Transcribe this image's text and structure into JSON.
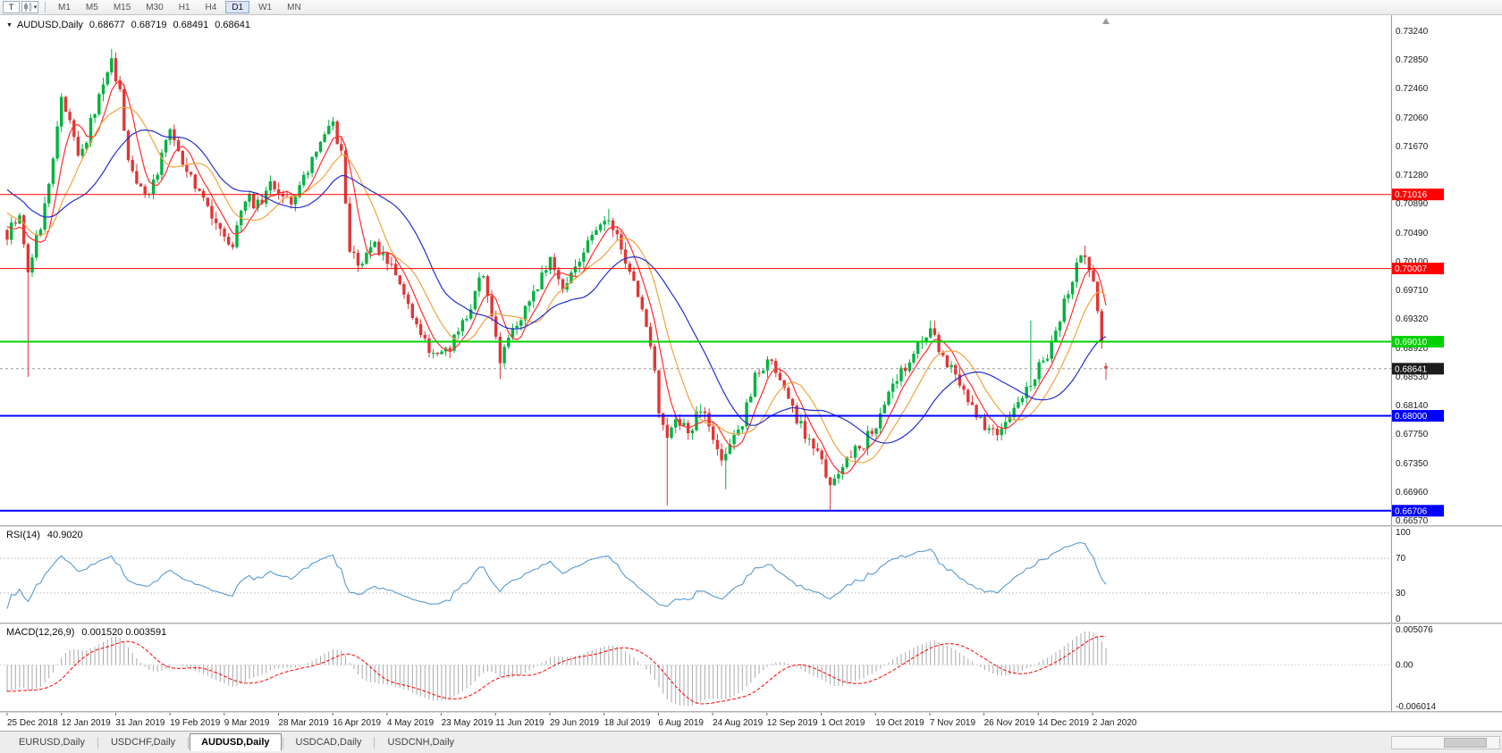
{
  "toolbar": {
    "chart_icon_label": "T",
    "timeframes": [
      {
        "label": "M1",
        "active": false
      },
      {
        "label": "M5",
        "active": false
      },
      {
        "label": "M15",
        "active": false
      },
      {
        "label": "M30",
        "active": false
      },
      {
        "label": "H1",
        "active": false
      },
      {
        "label": "H4",
        "active": false
      },
      {
        "label": "D1",
        "active": true
      },
      {
        "label": "W1",
        "active": false
      },
      {
        "label": "MN",
        "active": false
      }
    ]
  },
  "icons": {
    "collapse": "▼",
    "dropdown": "▾"
  },
  "chart_header": {
    "symbol_label": "AUDUSD,Daily",
    "open": "0.68677",
    "high": "0.68719",
    "low": "0.68491",
    "close": "0.68641"
  },
  "colors": {
    "candle_up": "#00b140",
    "candle_down": "#e03636",
    "ma_fast": "#ff2e2e",
    "ma_mid": "#f2a33c",
    "ma_slow": "#2330cc",
    "rsi": "#569bd2",
    "macd_hist": "#a9a9a9",
    "macd_signal": "#ff0000",
    "line_red": "#ff0000",
    "line_green": "#00d200",
    "line_blue": "#0000ff",
    "current_tag": "#1c1c1c"
  },
  "chart_data": {
    "type": "candlestick",
    "symbol": "AUDUSD",
    "timeframe": "Daily",
    "bars": 264,
    "y_axis": {
      "top_price": 0.7324,
      "bottom_price": 0.6657
    },
    "y_ticks": [
      "0.73240",
      "0.72850",
      "0.72460",
      "0.72060",
      "0.71670",
      "0.71280",
      "0.70890",
      "0.70490",
      "0.70100",
      "0.69710",
      "0.69320",
      "0.68920",
      "0.68530",
      "0.68140",
      "0.67750",
      "0.67350",
      "0.66960",
      "0.66570"
    ],
    "x_labels": [
      "25 Dec 2018",
      "12 Jan 2019",
      "31 Jan 2019",
      "19 Feb 2019",
      "9 Mar 2019",
      "28 Mar 2019",
      "16 Apr 2019",
      "4 May 2019",
      "23 May 2019",
      "11 Jun 2019",
      "29 Jun 2019",
      "18 Jul 2019",
      "6 Aug 2019",
      "24 Aug 2019",
      "12 Sep 2019",
      "1 Oct 2019",
      "19 Oct 2019",
      "7 Nov 2019",
      "26 Nov 2019",
      "14 Dec 2019",
      "2 Jan 2020"
    ],
    "price_anchors": [
      [
        0,
        0.7048
      ],
      [
        3,
        0.7065
      ],
      [
        5,
        0.6995
      ],
      [
        8,
        0.706
      ],
      [
        11,
        0.715
      ],
      [
        13,
        0.723
      ],
      [
        15,
        0.7205
      ],
      [
        17,
        0.715
      ],
      [
        19,
        0.718
      ],
      [
        22,
        0.724
      ],
      [
        25,
        0.7285
      ],
      [
        27,
        0.724
      ],
      [
        29,
        0.715
      ],
      [
        31,
        0.711
      ],
      [
        34,
        0.7095
      ],
      [
        37,
        0.716
      ],
      [
        39,
        0.7195
      ],
      [
        42,
        0.714
      ],
      [
        45,
        0.7115
      ],
      [
        48,
        0.7085
      ],
      [
        50,
        0.706
      ],
      [
        52,
        0.704
      ],
      [
        54,
        0.703
      ],
      [
        56,
        0.7075
      ],
      [
        58,
        0.71
      ],
      [
        60,
        0.7085
      ],
      [
        63,
        0.712
      ],
      [
        65,
        0.7105
      ],
      [
        68,
        0.7085
      ],
      [
        70,
        0.711
      ],
      [
        73,
        0.715
      ],
      [
        76,
        0.7185
      ],
      [
        78,
        0.72
      ],
      [
        80,
        0.716
      ],
      [
        82,
        0.702
      ],
      [
        85,
        0.701
      ],
      [
        88,
        0.7035
      ],
      [
        91,
        0.701
      ],
      [
        94,
        0.6985
      ],
      [
        97,
        0.694
      ],
      [
        100,
        0.69
      ],
      [
        102,
        0.6875
      ],
      [
        104,
        0.6885
      ],
      [
        107,
        0.6905
      ],
      [
        110,
        0.693
      ],
      [
        112,
        0.6975
      ],
      [
        114,
        0.6995
      ],
      [
        116,
        0.6935
      ],
      [
        118,
        0.688
      ],
      [
        121,
        0.692
      ],
      [
        124,
        0.6945
      ],
      [
        127,
        0.6975
      ],
      [
        130,
        0.7015
      ],
      [
        133,
        0.6975
      ],
      [
        136,
        0.6995
      ],
      [
        139,
        0.7035
      ],
      [
        142,
        0.7055
      ],
      [
        144,
        0.707
      ],
      [
        146,
        0.704
      ],
      [
        148,
        0.7005
      ],
      [
        150,
        0.698
      ],
      [
        152,
        0.6945
      ],
      [
        154,
        0.69
      ],
      [
        156,
        0.6805
      ],
      [
        158,
        0.677
      ],
      [
        160,
        0.6795
      ],
      [
        163,
        0.678
      ],
      [
        166,
        0.6805
      ],
      [
        169,
        0.6775
      ],
      [
        171,
        0.6745
      ],
      [
        173,
        0.676
      ],
      [
        176,
        0.679
      ],
      [
        179,
        0.6855
      ],
      [
        182,
        0.688
      ],
      [
        185,
        0.685
      ],
      [
        188,
        0.681
      ],
      [
        191,
        0.6775
      ],
      [
        193,
        0.6755
      ],
      [
        195,
        0.674
      ],
      [
        197,
        0.67
      ],
      [
        199,
        0.672
      ],
      [
        202,
        0.6745
      ],
      [
        205,
        0.6765
      ],
      [
        208,
        0.6785
      ],
      [
        211,
        0.683
      ],
      [
        214,
        0.686
      ],
      [
        217,
        0.6885
      ],
      [
        220,
        0.691
      ],
      [
        221,
        0.692
      ],
      [
        224,
        0.688
      ],
      [
        227,
        0.6855
      ],
      [
        230,
        0.6825
      ],
      [
        233,
        0.6795
      ],
      [
        234,
        0.6785
      ],
      [
        237,
        0.677
      ],
      [
        240,
        0.68
      ],
      [
        243,
        0.683
      ],
      [
        246,
        0.6855
      ],
      [
        249,
        0.6885
      ],
      [
        252,
        0.6935
      ],
      [
        255,
        0.699
      ],
      [
        257,
        0.702
      ],
      [
        258,
        0.7025
      ],
      [
        259,
        0.7
      ],
      [
        260,
        0.6985
      ],
      [
        261,
        0.6945
      ],
      [
        262,
        0.6905
      ],
      [
        263,
        0.6864
      ]
    ],
    "pre_anchors": [
      [
        -40,
        0.728
      ],
      [
        -30,
        0.725
      ],
      [
        -20,
        0.715
      ],
      [
        -10,
        0.7105
      ],
      [
        -1,
        0.7052
      ]
    ],
    "spikes": [
      {
        "bar": 5,
        "low": 0.6853
      },
      {
        "bar": 25,
        "high": 0.73
      },
      {
        "bar": 78,
        "high": 0.7207
      },
      {
        "bar": 118,
        "low": 0.685
      },
      {
        "bar": 144,
        "high": 0.7082
      },
      {
        "bar": 158,
        "low": 0.6678
      },
      {
        "bar": 172,
        "low": 0.67
      },
      {
        "bar": 197,
        "low": 0.66706
      },
      {
        "bar": 221,
        "high": 0.693
      },
      {
        "bar": 245,
        "high": 0.693
      },
      {
        "bar": 258,
        "high": 0.7032
      }
    ],
    "last_bar": {
      "open": 0.68677,
      "high": 0.68719,
      "low": 0.68491,
      "close": 0.68641
    },
    "moving_averages": [
      {
        "period": 6,
        "color_key": "ma_fast"
      },
      {
        "period": 12,
        "color_key": "ma_mid"
      },
      {
        "period": 24,
        "color_key": "ma_slow"
      }
    ],
    "h_lines": [
      {
        "price": 0.71016,
        "label": "0.71016",
        "color_key": "line_red",
        "width": 1
      },
      {
        "price": 0.70007,
        "label": "0.70007",
        "color_key": "line_red",
        "width": 1
      },
      {
        "price": 0.6901,
        "label": "0.69010",
        "color_key": "line_green",
        "width": 2
      },
      {
        "price": 0.68,
        "label": "0.68000",
        "color_key": "line_blue",
        "width": 2
      },
      {
        "price": 0.66706,
        "label": "0.66706",
        "color_key": "line_blue",
        "width": 2
      }
    ],
    "current_price": {
      "value": 0.68641,
      "label": "0.68641"
    },
    "rsi": {
      "label": "RSI(14)",
      "value": "40.9020",
      "period": 14,
      "levels": [
        70,
        30
      ],
      "ticks": [
        "100",
        "70",
        "30",
        "0"
      ]
    },
    "macd": {
      "label": "MACD(12,26,9)",
      "values": "0.001520 0.003591",
      "fast": 12,
      "slow": 26,
      "signal": 9,
      "scale_top": 0.005076,
      "scale_bottom": -0.006014,
      "ticks": [
        "0.005076",
        "0.00",
        "-0.006014"
      ]
    }
  },
  "tabs": [
    {
      "label": "EURUSD,Daily",
      "active": false
    },
    {
      "label": "USDCHF,Daily",
      "active": false
    },
    {
      "label": "AUDUSD,Daily",
      "active": true
    },
    {
      "label": "USDCAD,Daily",
      "active": false
    },
    {
      "label": "USDCNH,Daily",
      "active": false
    }
  ]
}
